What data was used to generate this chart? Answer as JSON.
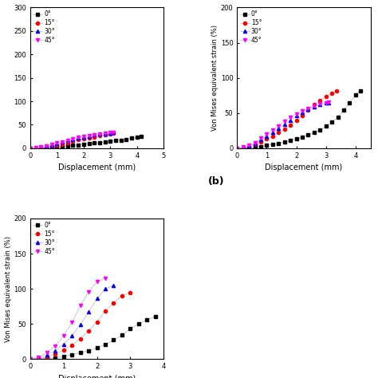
{
  "line_color": "#c0c0c0",
  "colors": {
    "0deg": "#000000",
    "15deg": "#ff0000",
    "30deg": "#0000ff",
    "45deg": "#ff00ff"
  },
  "legend_labels": [
    "0°",
    "15°",
    "30°",
    "45°"
  ],
  "xlabel": "Displacement (mm)",
  "ylabel_bc": "Von Mises equivalent strain (%)",
  "plot_a": {
    "xlim": [
      0,
      5
    ],
    "ylim": [
      0,
      300
    ],
    "yticks": [
      0,
      50,
      100,
      150,
      200,
      250,
      300
    ],
    "xticks": [
      0,
      1,
      2,
      3,
      4,
      5
    ],
    "data_0": {
      "x": [
        0,
        0.2,
        0.4,
        0.6,
        0.8,
        1.0,
        1.2,
        1.4,
        1.6,
        1.8,
        2.0,
        2.2,
        2.4,
        2.6,
        2.8,
        3.0,
        3.2,
        3.4,
        3.6,
        3.8,
        4.0,
        4.15
      ],
      "y": [
        0,
        0.3,
        0.6,
        1.0,
        1.5,
        2.5,
        3.5,
        5,
        6,
        7,
        9,
        10,
        11,
        12,
        13,
        15,
        16,
        17,
        19,
        21,
        24,
        26
      ]
    },
    "data_15": {
      "x": [
        0,
        0.2,
        0.4,
        0.6,
        0.8,
        1.0,
        1.2,
        1.4,
        1.6,
        1.8,
        2.0,
        2.2,
        2.4,
        2.6,
        2.8,
        3.0,
        3.1
      ],
      "y": [
        0,
        0.5,
        1.5,
        3,
        5,
        7,
        9,
        12,
        15,
        18,
        20,
        22,
        24,
        27,
        29,
        31,
        32
      ]
    },
    "data_30": {
      "x": [
        0,
        0.2,
        0.4,
        0.6,
        0.8,
        1.0,
        1.2,
        1.4,
        1.6,
        1.8,
        2.0,
        2.2,
        2.4,
        2.6,
        2.8,
        3.0,
        3.1
      ],
      "y": [
        0,
        0.5,
        2,
        4,
        7,
        10,
        13,
        16,
        19,
        22,
        24,
        26,
        28,
        30,
        31,
        32,
        33
      ]
    },
    "data_45": {
      "x": [
        0,
        0.2,
        0.4,
        0.6,
        0.8,
        1.0,
        1.2,
        1.4,
        1.6,
        1.8,
        2.0,
        2.2,
        2.4,
        2.6,
        2.8,
        3.0,
        3.1
      ],
      "y": [
        0,
        0.8,
        2.5,
        5,
        8,
        11,
        14,
        17,
        20,
        23,
        25,
        27,
        29,
        31,
        32,
        33,
        34
      ]
    }
  },
  "plot_b": {
    "xlim": [
      0,
      4.5
    ],
    "ylim": [
      0,
      200
    ],
    "yticks": [
      0,
      50,
      100,
      150,
      200
    ],
    "xticks": [
      0,
      1,
      2,
      3,
      4
    ],
    "data_0": {
      "x": [
        0,
        0.2,
        0.4,
        0.6,
        0.8,
        1.0,
        1.2,
        1.4,
        1.6,
        1.8,
        2.0,
        2.2,
        2.4,
        2.6,
        2.8,
        3.0,
        3.2,
        3.4,
        3.6,
        3.8,
        4.0,
        4.15
      ],
      "y": [
        0,
        0.3,
        0.7,
        1.5,
        2.5,
        4,
        5.5,
        7,
        9,
        11,
        13,
        16,
        19,
        22,
        26,
        31,
        37,
        44,
        54,
        65,
        76,
        82
      ]
    },
    "data_15": {
      "x": [
        0,
        0.2,
        0.4,
        0.6,
        0.8,
        1.0,
        1.2,
        1.4,
        1.6,
        1.8,
        2.0,
        2.2,
        2.4,
        2.6,
        2.8,
        3.0,
        3.2,
        3.35
      ],
      "y": [
        0,
        0.5,
        2,
        5,
        9,
        13,
        17,
        22,
        27,
        33,
        39,
        46,
        54,
        62,
        68,
        73,
        78,
        81
      ]
    },
    "data_30": {
      "x": [
        0,
        0.2,
        0.4,
        0.6,
        0.8,
        1.0,
        1.2,
        1.4,
        1.6,
        1.8,
        2.0,
        2.2,
        2.4,
        2.6,
        2.8,
        3.0,
        3.1
      ],
      "y": [
        0,
        1,
        3,
        7,
        12,
        17,
        22,
        28,
        34,
        40,
        46,
        51,
        55,
        59,
        62,
        64,
        65
      ]
    },
    "data_45": {
      "x": [
        0,
        0.2,
        0.4,
        0.6,
        0.8,
        1.0,
        1.2,
        1.4,
        1.6,
        1.8,
        2.0,
        2.2,
        2.4,
        2.6,
        2.8,
        3.0,
        3.1
      ],
      "y": [
        0,
        1.5,
        4,
        8,
        14,
        20,
        26,
        32,
        38,
        44,
        49,
        53,
        57,
        60,
        63,
        65,
        66
      ]
    }
  },
  "plot_c": {
    "xlim": [
      0,
      4
    ],
    "ylim": [
      0,
      200
    ],
    "yticks": [
      0,
      50,
      100,
      150,
      200
    ],
    "xticks": [
      0,
      1,
      2,
      3,
      4
    ],
    "data_0": {
      "x": [
        0,
        0.25,
        0.5,
        0.75,
        1.0,
        1.25,
        1.5,
        1.75,
        2.0,
        2.25,
        2.5,
        2.75,
        3.0,
        3.25,
        3.5,
        3.75
      ],
      "y": [
        0,
        0.5,
        1,
        2,
        4,
        6,
        9,
        12,
        16,
        21,
        27,
        34,
        43,
        50,
        56,
        60
      ]
    },
    "data_15": {
      "x": [
        0,
        0.25,
        0.5,
        0.75,
        1.0,
        1.25,
        1.5,
        1.75,
        2.0,
        2.25,
        2.5,
        2.75,
        3.0
      ],
      "y": [
        0,
        1,
        3,
        7,
        13,
        20,
        29,
        40,
        53,
        68,
        80,
        90,
        95
      ]
    },
    "data_30": {
      "x": [
        0,
        0.25,
        0.5,
        0.75,
        1.0,
        1.25,
        1.5,
        1.75,
        2.0,
        2.25,
        2.5
      ],
      "y": [
        0,
        2,
        6,
        12,
        21,
        33,
        49,
        67,
        86,
        100,
        105
      ]
    },
    "data_45": {
      "x": [
        0,
        0.25,
        0.5,
        0.75,
        1.0,
        1.25,
        1.5,
        1.75,
        2.0,
        2.25
      ],
      "y": [
        0,
        3,
        9,
        19,
        33,
        52,
        76,
        96,
        110,
        115
      ]
    }
  }
}
